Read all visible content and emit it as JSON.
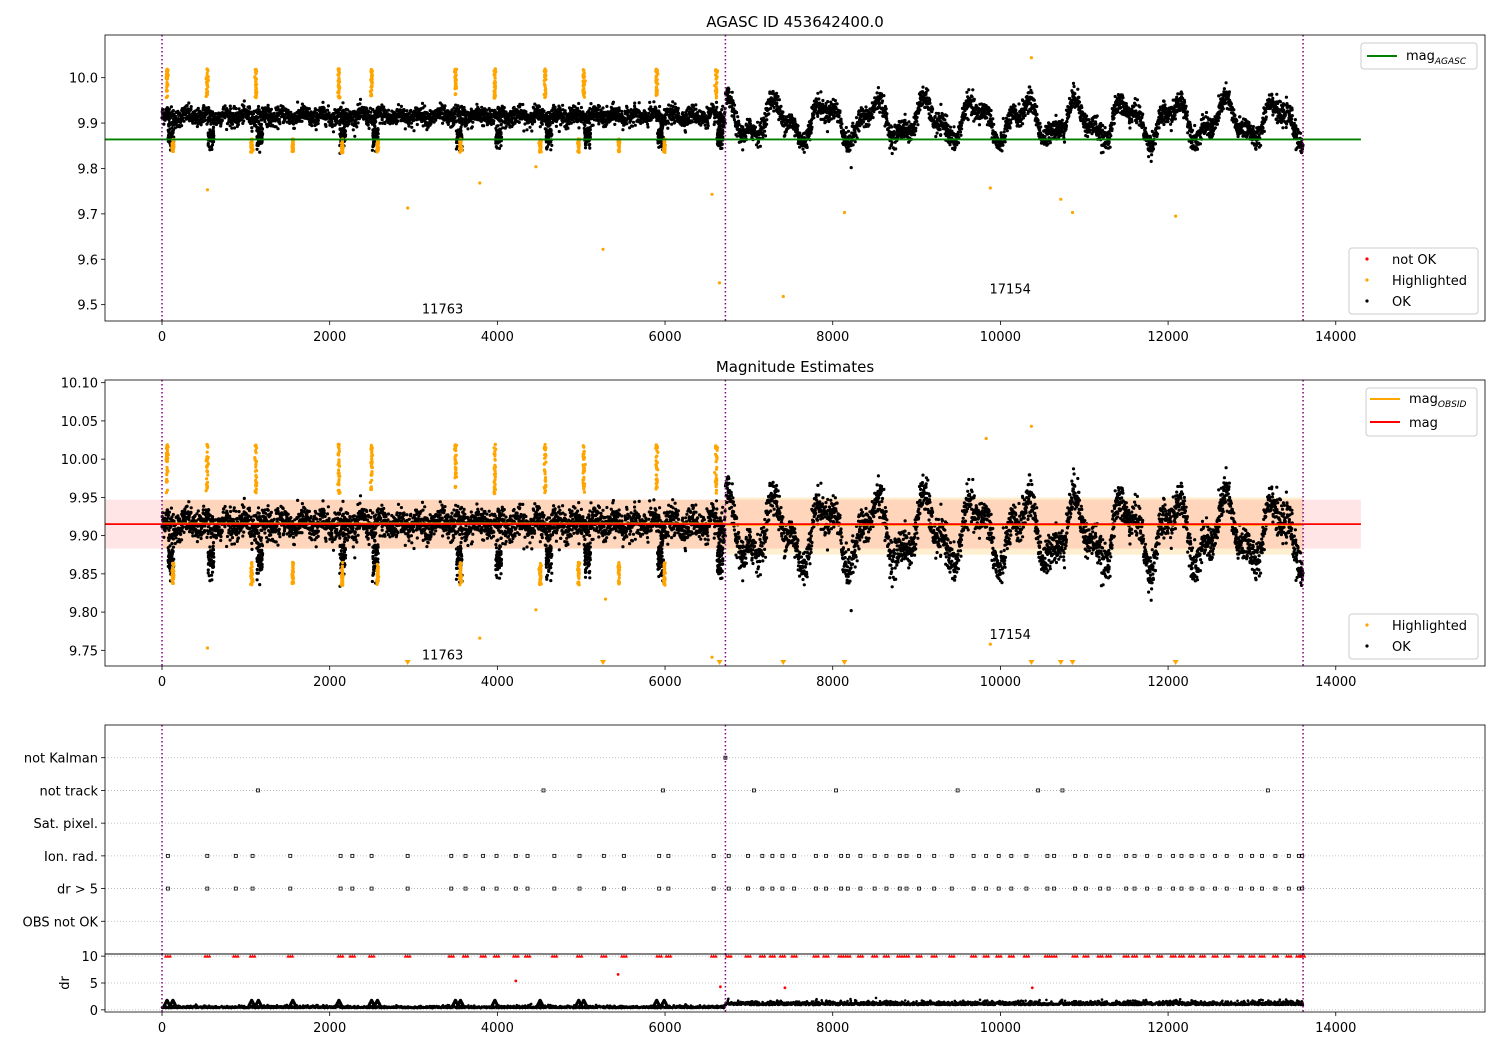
{
  "colors": {
    "ok": "#000000",
    "highlighted": "#ffa500",
    "not_ok": "#ff0000",
    "agasc_line": "#008000",
    "mag_line": "#ff0000",
    "obsid_band": "#ffa500",
    "mag_band": "#ff0000",
    "obs_boundary": "#800080"
  },
  "chart_data": [
    {
      "type": "scatter",
      "title": "AGASC ID 453642400.0",
      "xlim": [
        -680,
        15780
      ],
      "ylim": [
        9.464,
        10.094
      ],
      "xticks": [
        0,
        2000,
        4000,
        6000,
        8000,
        10000,
        12000,
        14000
      ],
      "yticks": [
        9.5,
        9.6,
        9.7,
        9.8,
        9.9,
        10.0
      ],
      "ytick_labels": [
        "9.5",
        "9.6",
        "9.7",
        "9.8",
        "9.9",
        "10.0"
      ],
      "grid": false,
      "obs_boundaries": [
        0,
        6720,
        13610
      ],
      "observations": [
        {
          "label": "11763",
          "x_start": 0,
          "x_end": 6720,
          "label_x": 3100,
          "label_y": 9.48,
          "base": 9.915,
          "amp": 0.008
        },
        {
          "label": "17154",
          "x_start": 6720,
          "x_end": 13610,
          "label_x": 9870,
          "label_y": 9.525,
          "base": 9.905,
          "amp": 0.05
        }
      ],
      "hlines": [
        {
          "name": "mag",
          "subscript": "AGASC",
          "y": 9.864,
          "x_range": [
            0,
            14300
          ]
        }
      ],
      "series": [
        {
          "name": "not OK",
          "points": []
        },
        {
          "name": "Highlighted",
          "points": [
            [
              543,
              9.753
            ],
            [
              2930,
              9.713
            ],
            [
              3790,
              9.768
            ],
            [
              4460,
              9.804
            ],
            [
              5260,
              9.622
            ],
            [
              6560,
              9.743
            ],
            [
              6650,
              9.548
            ],
            [
              7410,
              9.518
            ],
            [
              8140,
              9.703
            ],
            [
              9880,
              9.757
            ],
            [
              10370,
              10.044
            ],
            [
              10720,
              9.732
            ],
            [
              10860,
              9.703
            ],
            [
              12090,
              9.695
            ]
          ]
        },
        {
          "name": "OK",
          "points": [
            [
              8220,
              9.802
            ]
          ]
        }
      ],
      "highlight_clusters": [
        60,
        130,
        540,
        1070,
        1120,
        1560,
        2110,
        2150,
        2500,
        2570,
        3500,
        3560,
        3970,
        4510,
        4570,
        4970,
        5030,
        5450,
        5900,
        5990,
        6610
      ],
      "legends": [
        {
          "position": "upper-right",
          "entries": [
            {
              "label": "mag",
              "subscript": "AGASC",
              "kind": "line",
              "color_key": "agasc_line"
            }
          ]
        },
        {
          "position": "lower-right",
          "entries": [
            {
              "label": "not OK",
              "kind": "dot",
              "color_key": "not_ok"
            },
            {
              "label": "Highlighted",
              "kind": "dot",
              "color_key": "highlighted"
            },
            {
              "label": "OK",
              "kind": "dot",
              "color_key": "ok"
            }
          ]
        }
      ]
    },
    {
      "type": "scatter",
      "title": "Magnitude Estimates",
      "xlim": [
        -680,
        15780
      ],
      "ylim": [
        9.7295,
        10.1035
      ],
      "xticks": [
        0,
        2000,
        4000,
        6000,
        8000,
        10000,
        12000,
        14000
      ],
      "yticks": [
        9.75,
        9.8,
        9.85,
        9.9,
        9.95,
        10.0,
        10.05,
        10.1
      ],
      "ytick_labels": [
        "9.75",
        "9.80",
        "9.85",
        "9.90",
        "9.95",
        "10.00",
        "10.05",
        "10.10"
      ],
      "grid": false,
      "obs_boundaries": [
        0,
        6720,
        13610
      ],
      "observations": [
        {
          "label": "11763",
          "x_start": 0,
          "x_end": 6720,
          "label_x": 3100,
          "label_y": 9.738
        },
        {
          "label": "17154",
          "x_start": 6720,
          "x_end": 13610,
          "label_x": 9870,
          "label_y": 9.765
        }
      ],
      "obsid_band": [
        {
          "x_start": 0,
          "x_end": 6720,
          "y_low": 9.883,
          "y_high": 9.947
        },
        {
          "x_start": 6720,
          "x_end": 13610,
          "y_low": 9.875,
          "y_high": 9.95
        }
      ],
      "obsid_lines": [
        {
          "x_start": 0,
          "x_end": 6720,
          "y": 9.916
        },
        {
          "x_start": 6720,
          "x_end": 13610,
          "y": 9.914
        }
      ],
      "mag_band": {
        "x_range": [
          0,
          14300
        ],
        "y_low": 9.883,
        "y_high": 9.947
      },
      "hlines": [
        {
          "name": "mag",
          "y": 9.915,
          "x_range": [
            0,
            14300
          ]
        }
      ],
      "series": [
        {
          "name": "Highlighted",
          "points": [
            [
              543,
              9.753
            ],
            [
              5290,
              9.817
            ],
            [
              4460,
              9.803
            ],
            [
              3790,
              9.766
            ],
            [
              6560,
              9.741
            ],
            [
              9880,
              9.758
            ],
            [
              10370,
              10.043
            ],
            [
              9830,
              10.027
            ]
          ]
        },
        {
          "name": "OK",
          "points": [
            [
              8220,
              9.802
            ]
          ]
        }
      ],
      "below_axis_markers": [
        2930,
        5260,
        6650,
        7410,
        8140,
        10370,
        10720,
        10860,
        12090
      ],
      "legends": [
        {
          "position": "upper-right",
          "entries": [
            {
              "label": "mag",
              "subscript": "OBSID",
              "kind": "line",
              "color_key": "obsid_band"
            },
            {
              "label": "mag",
              "kind": "line",
              "color_key": "mag_line"
            }
          ]
        },
        {
          "position": "lower-right",
          "entries": [
            {
              "label": "Highlighted",
              "kind": "dot",
              "color_key": "highlighted"
            },
            {
              "label": "OK",
              "kind": "dot",
              "color_key": "ok"
            }
          ]
        }
      ]
    },
    {
      "type": "scatter",
      "title": "",
      "xlim": [
        -680,
        15780
      ],
      "ylim": [
        0,
        7
      ],
      "category_ticks": [
        "OBS not OK",
        "dr > 5",
        "Ion. rad.",
        "Sat. pixel.",
        "not track",
        "not Kalman"
      ],
      "grid": true,
      "obs_boundaries": [
        0,
        6720,
        13610
      ],
      "flags": {
        "not Kalman": [
          6720
        ],
        "not track": [
          1145,
          4550,
          5975,
          7060,
          8040,
          9490,
          10450,
          10740,
          13190
        ],
        "Sat. pixel.": [],
        "Ion. rad.": [
          70,
          540,
          880,
          1080,
          1530,
          2130,
          2270,
          2500,
          2930,
          3450,
          3620,
          3830,
          3990,
          4220,
          4360,
          4680,
          4980,
          5270,
          5510,
          5930,
          6040,
          6580,
          6760,
          6990,
          7160,
          7280,
          7400,
          7540,
          7800,
          7920,
          8100,
          8180,
          8330,
          8500,
          8640,
          8800,
          8880,
          9030,
          9210,
          9420,
          9680,
          9830,
          9980,
          10130,
          10310,
          10560,
          10640,
          10890,
          11020,
          11190,
          11290,
          11500,
          11600,
          11750,
          11900,
          12060,
          12160,
          12280,
          12410,
          12560,
          12700,
          12870,
          13000,
          13120,
          13280,
          13440,
          13560,
          13600
        ],
        "dr > 5": [
          70,
          540,
          880,
          1080,
          1530,
          2130,
          2270,
          2500,
          2930,
          3450,
          3620,
          3830,
          3990,
          4220,
          4360,
          4680,
          4980,
          5270,
          5510,
          5930,
          6040,
          6580,
          6760,
          6990,
          7160,
          7280,
          7400,
          7540,
          7800,
          7920,
          8100,
          8180,
          8330,
          8500,
          8640,
          8800,
          8880,
          9030,
          9210,
          9420,
          9680,
          9830,
          9980,
          10130,
          10310,
          10560,
          10640,
          10890,
          11020,
          11190,
          11290,
          11500,
          11600,
          11750,
          11900,
          12060,
          12160,
          12280,
          12410,
          12560,
          12700,
          12870,
          13000,
          13120,
          13280,
          13440,
          13560,
          13600
        ],
        "OBS not OK": []
      }
    },
    {
      "type": "scatter",
      "title": "",
      "ylabel": "dr",
      "xlim": [
        -680,
        15780
      ],
      "ylim": [
        -0.4,
        10.4
      ],
      "xticks": [
        0,
        2000,
        4000,
        6000,
        8000,
        10000,
        12000,
        14000
      ],
      "yticks": [
        0,
        5,
        10
      ],
      "grid": true,
      "obs_boundaries": [
        0,
        6720,
        13610
      ],
      "not_ok_outliers": [
        [
          4220,
          5.4
        ],
        [
          5440,
          6.6
        ],
        [
          6660,
          4.3
        ],
        [
          7430,
          4.1
        ],
        [
          10380,
          4.1
        ]
      ],
      "dr_bumps": [
        60,
        130,
        1070,
        1150,
        1560,
        2110,
        2500,
        2570,
        3500,
        3560,
        3970,
        4510,
        4970,
        5030,
        5900,
        5990
      ]
    }
  ]
}
